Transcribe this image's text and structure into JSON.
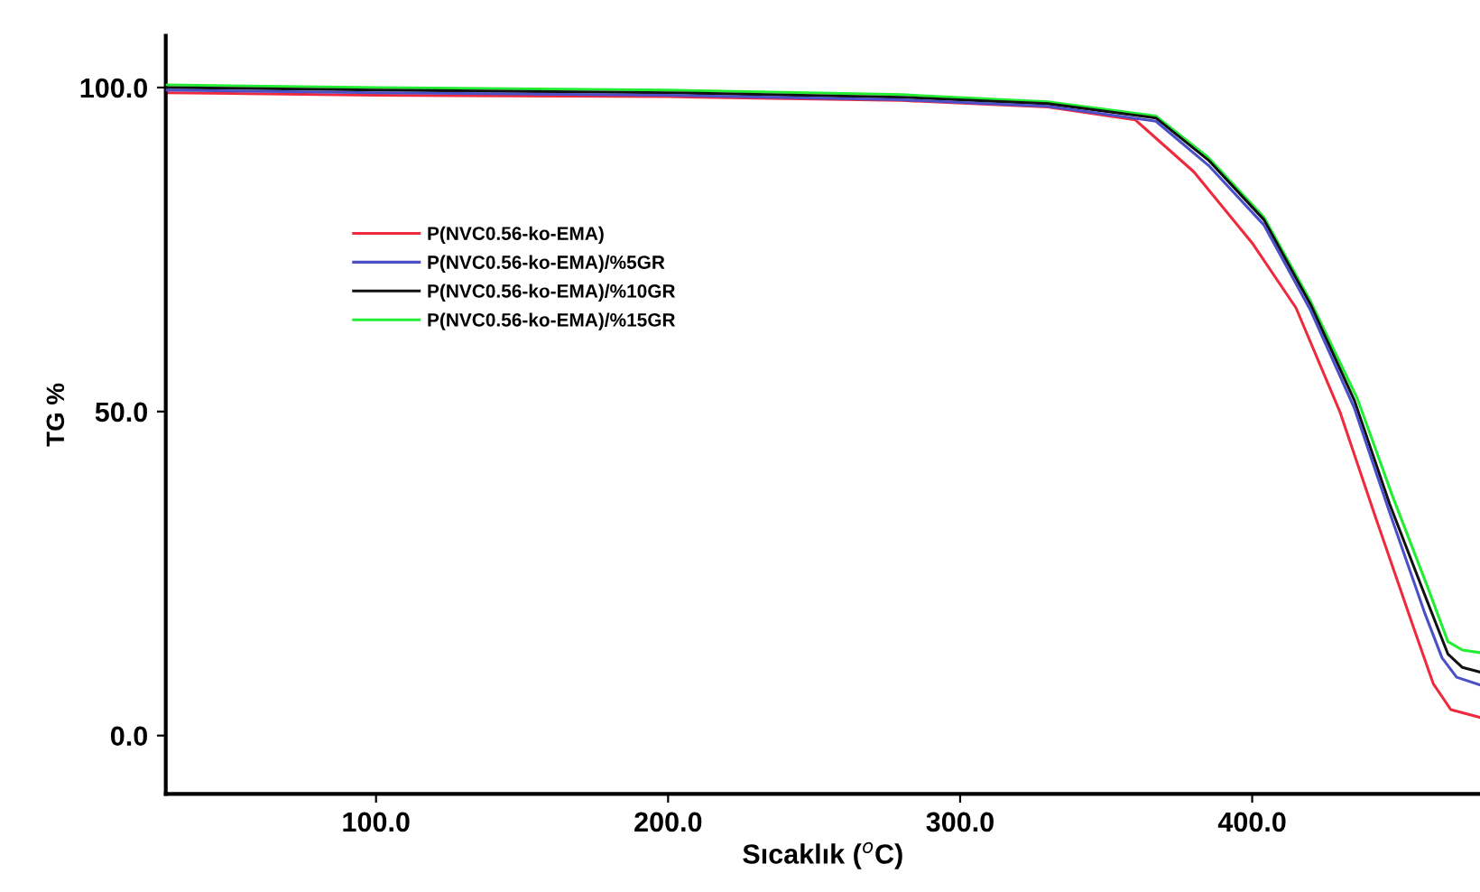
{
  "chart_data": {
    "type": "line",
    "xlabel": "Sıcaklık ($^{o}$C)",
    "ylabel": "TG %",
    "xlim": [
      28,
      478
    ],
    "ylim": [
      -9,
      108
    ],
    "xticks": [
      {
        "value": 100,
        "label": "100.0"
      },
      {
        "value": 200,
        "label": "200.0"
      },
      {
        "value": 300,
        "label": "300.0"
      },
      {
        "value": 400,
        "label": "400.0"
      }
    ],
    "yticks": [
      {
        "value": 0,
        "label": "0.0"
      },
      {
        "value": 50,
        "label": "50.0"
      },
      {
        "value": 100,
        "label": "100.0"
      }
    ],
    "grid": false,
    "legend": "left",
    "marker": "none",
    "line_style": "solid",
    "series": [
      {
        "name": "P(NVC0.56-ko-EMA)",
        "color": "#ee2a3c",
        "x": [
          28,
          100,
          200,
          280,
          330,
          360,
          380,
          400,
          415,
          430,
          442,
          455,
          462,
          468,
          478
        ],
        "values": [
          99.2,
          98.8,
          98.6,
          98.0,
          97,
          95,
          87,
          76,
          66,
          50,
          34,
          17,
          8,
          4,
          2.8
        ]
      },
      {
        "name": "P(NVC0.56-ko-EMA)/%5GR",
        "color": "#4b4fc8",
        "x": [
          28,
          100,
          200,
          280,
          330,
          367,
          385,
          404,
          420,
          435,
          447,
          459,
          465,
          470,
          478
        ],
        "values": [
          99.6,
          99.2,
          98.8,
          98.1,
          97.1,
          94.8,
          88,
          78.8,
          65.6,
          50.5,
          34.5,
          19,
          12,
          9,
          7.8
        ]
      },
      {
        "name": "P(NVC0.56-ko-EMA)/%10GR",
        "color": "#111111",
        "x": [
          28,
          100,
          200,
          280,
          330,
          367,
          385,
          404,
          420,
          435,
          447,
          459,
          467,
          472,
          478
        ],
        "values": [
          100,
          99.6,
          99.2,
          98.5,
          97.5,
          95.3,
          88.8,
          79.6,
          66.5,
          51.7,
          35.8,
          21.8,
          12.6,
          10.5,
          9.8
        ]
      },
      {
        "name": "P(NVC0.56-ko-EMA)/%15GR",
        "color": "#22ee33",
        "x": [
          28,
          100,
          200,
          280,
          330,
          367,
          385,
          404,
          420,
          436,
          448,
          460,
          467,
          472,
          478
        ],
        "values": [
          100.4,
          100,
          99.6,
          98.9,
          97.8,
          95.6,
          89.2,
          80,
          67,
          52,
          37,
          23,
          14.5,
          13.2,
          12.8
        ]
      }
    ]
  }
}
